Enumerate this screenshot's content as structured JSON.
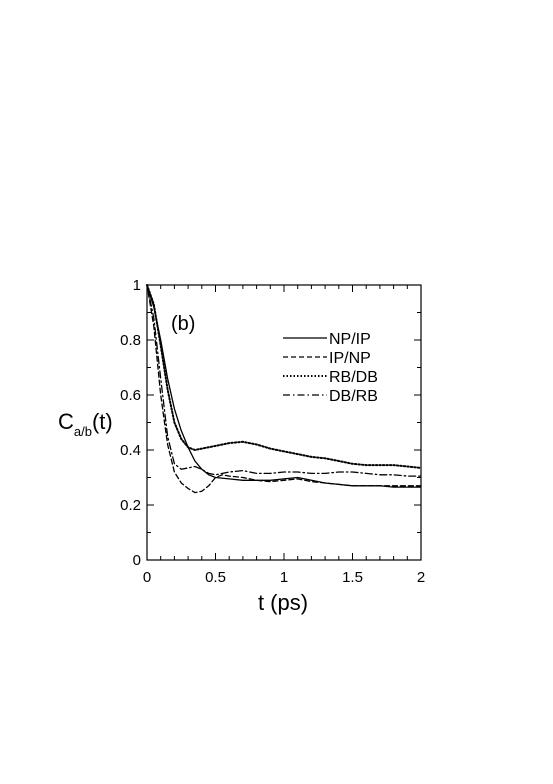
{
  "chart_data": {
    "type": "line",
    "panel_label": "(b)",
    "xlabel": "t (ps)",
    "ylabel_main": "C",
    "ylabel_sub": "a/b",
    "ylabel_suffix": "(t)",
    "xlim": [
      0,
      2
    ],
    "ylim": [
      0,
      1
    ],
    "x_ticks": [
      0,
      0.5,
      1,
      1.5,
      2
    ],
    "x_tick_labels": [
      "0",
      "0.5",
      "1",
      "1.5",
      "2"
    ],
    "y_ticks": [
      0,
      0.2,
      0.4,
      0.6,
      0.8,
      1
    ],
    "y_tick_labels": [
      "0",
      "0.2",
      "0.4",
      "0.6",
      "0.8",
      "1"
    ],
    "grid": false,
    "legend_position": "top-right",
    "series": [
      {
        "name": "NP/IP",
        "style": "solid",
        "x": [
          0,
          0.05,
          0.1,
          0.15,
          0.2,
          0.25,
          0.3,
          0.35,
          0.4,
          0.45,
          0.5,
          0.6,
          0.7,
          0.8,
          0.9,
          1.0,
          1.1,
          1.2,
          1.3,
          1.4,
          1.5,
          1.6,
          1.7,
          1.8,
          1.9,
          2.0
        ],
        "y": [
          1.0,
          0.92,
          0.8,
          0.66,
          0.55,
          0.47,
          0.41,
          0.36,
          0.33,
          0.31,
          0.3,
          0.295,
          0.29,
          0.29,
          0.29,
          0.295,
          0.3,
          0.29,
          0.28,
          0.275,
          0.27,
          0.27,
          0.27,
          0.265,
          0.265,
          0.265
        ]
      },
      {
        "name": "IP/NP",
        "style": "dashed",
        "x": [
          0,
          0.05,
          0.1,
          0.15,
          0.2,
          0.25,
          0.3,
          0.35,
          0.4,
          0.45,
          0.5,
          0.55,
          0.6,
          0.7,
          0.8,
          0.9,
          1.0,
          1.1,
          1.2,
          1.3,
          1.4,
          1.5,
          1.6,
          1.7,
          1.8,
          1.9,
          2.0
        ],
        "y": [
          1.0,
          0.85,
          0.6,
          0.42,
          0.32,
          0.28,
          0.26,
          0.245,
          0.25,
          0.27,
          0.3,
          0.31,
          0.305,
          0.3,
          0.29,
          0.285,
          0.29,
          0.295,
          0.285,
          0.28,
          0.275,
          0.27,
          0.27,
          0.27,
          0.27,
          0.27,
          0.27
        ]
      },
      {
        "name": "RB/DB",
        "style": "dotted",
        "x": [
          0,
          0.05,
          0.1,
          0.15,
          0.2,
          0.25,
          0.3,
          0.35,
          0.4,
          0.5,
          0.6,
          0.7,
          0.8,
          0.9,
          1.0,
          1.1,
          1.2,
          1.3,
          1.4,
          1.5,
          1.6,
          1.7,
          1.8,
          1.9,
          2.0
        ],
        "y": [
          1.0,
          0.93,
          0.78,
          0.62,
          0.5,
          0.44,
          0.41,
          0.4,
          0.405,
          0.415,
          0.425,
          0.43,
          0.42,
          0.405,
          0.395,
          0.385,
          0.375,
          0.37,
          0.36,
          0.35,
          0.345,
          0.345,
          0.345,
          0.34,
          0.335
        ]
      },
      {
        "name": "DB/RB",
        "style": "dashdot",
        "x": [
          0,
          0.05,
          0.1,
          0.15,
          0.2,
          0.25,
          0.3,
          0.35,
          0.4,
          0.45,
          0.5,
          0.6,
          0.7,
          0.8,
          0.9,
          1.0,
          1.1,
          1.2,
          1.3,
          1.4,
          1.5,
          1.6,
          1.7,
          1.8,
          1.9,
          2.0
        ],
        "y": [
          1.0,
          0.88,
          0.66,
          0.45,
          0.35,
          0.33,
          0.335,
          0.34,
          0.33,
          0.315,
          0.31,
          0.32,
          0.325,
          0.315,
          0.315,
          0.32,
          0.32,
          0.315,
          0.315,
          0.32,
          0.32,
          0.315,
          0.31,
          0.31,
          0.305,
          0.305
        ]
      }
    ]
  }
}
